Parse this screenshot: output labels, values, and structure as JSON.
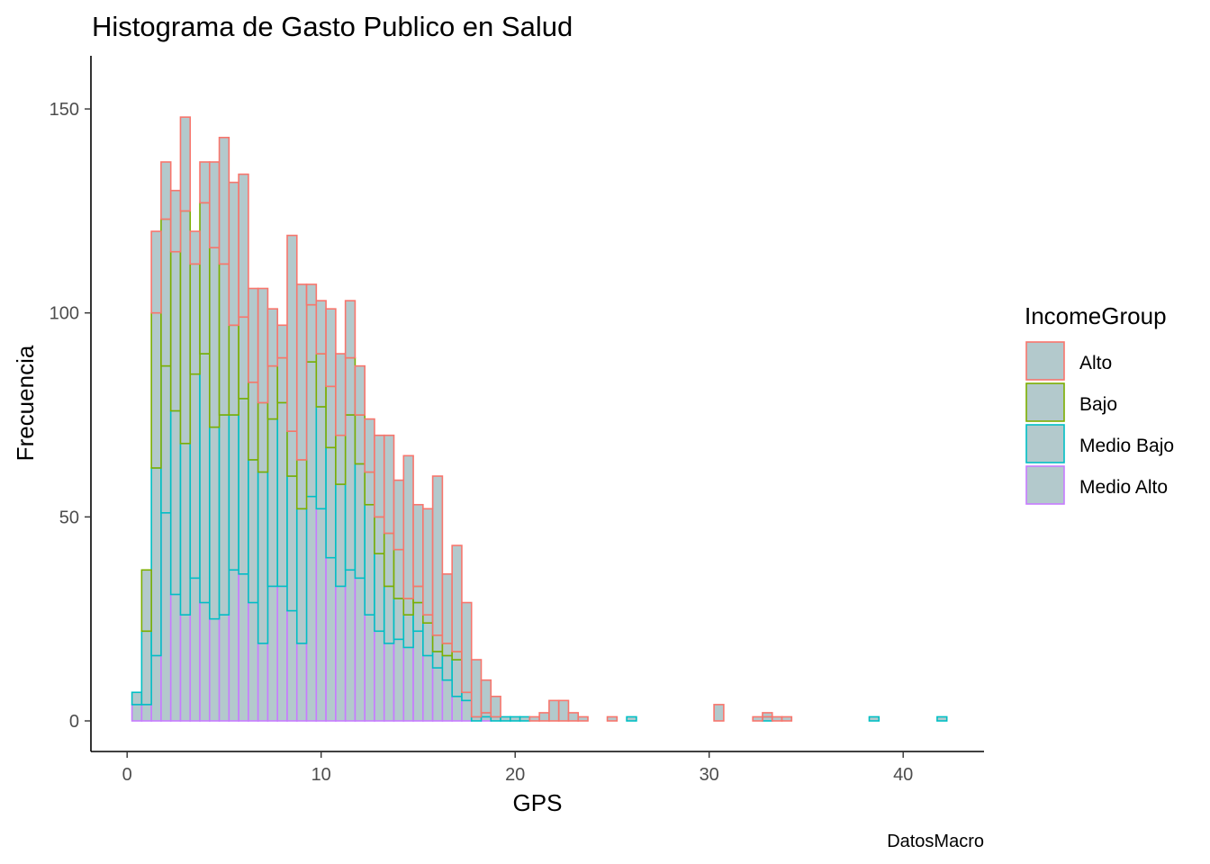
{
  "chart_data": {
    "type": "bar",
    "title": "Histograma de Gasto Publico en Salud",
    "xlabel": "GPS",
    "ylabel": "Frecuencia",
    "caption": "DatosMacro",
    "xlim": [
      0,
      43
    ],
    "ylim": [
      0,
      160
    ],
    "xticks": [
      0,
      10,
      20,
      30,
      40
    ],
    "yticks": [
      0,
      50,
      100,
      150
    ],
    "bin_width": 0.5,
    "stacked": true,
    "grid": false,
    "fill_color": "#b3c9cc",
    "legend": {
      "title": "IncomeGroup",
      "position": "right"
    },
    "x": [
      0.5,
      1.0,
      1.5,
      2.0,
      2.5,
      3.0,
      3.5,
      4.0,
      4.5,
      5.0,
      5.5,
      6.0,
      6.5,
      7.0,
      7.5,
      8.0,
      8.5,
      9.0,
      9.5,
      10.0,
      10.5,
      11.0,
      11.5,
      12.0,
      12.5,
      13.0,
      13.5,
      14.0,
      14.5,
      15.0,
      15.5,
      16.0,
      16.5,
      17.0,
      17.5,
      18.0,
      18.5,
      19.0,
      19.5,
      20.0,
      20.5,
      21.0,
      21.5,
      22.0,
      22.5,
      23.0,
      23.5,
      24.0,
      24.5,
      25.0,
      25.5,
      26.0,
      26.5,
      27.0,
      27.5,
      28.0,
      28.5,
      29.0,
      29.5,
      30.0,
      30.5,
      31.0,
      31.5,
      32.0,
      32.5,
      33.0,
      33.5,
      34.0,
      34.5,
      35.0,
      35.5,
      36.0,
      36.5,
      37.0,
      37.5,
      38.0,
      38.5,
      39.0,
      39.5,
      40.0,
      40.5,
      41.0,
      41.5,
      42.0
    ],
    "series": [
      {
        "name": "Medio Alto",
        "color": "#c77cff",
        "values": [
          4,
          4,
          16,
          51,
          31,
          26,
          35,
          29,
          25,
          26,
          37,
          36,
          29,
          19,
          33,
          33,
          27,
          19,
          55,
          52,
          40,
          33,
          37,
          35,
          26,
          22,
          19,
          20,
          18,
          22,
          16,
          13,
          10,
          6,
          5,
          0,
          1,
          0,
          0,
          0,
          0,
          0,
          0,
          0,
          0,
          0,
          0,
          0,
          0,
          0,
          0,
          0,
          0,
          0,
          0,
          0,
          0,
          0,
          0,
          0,
          0,
          0,
          0,
          0,
          0,
          0,
          0,
          0,
          0,
          0,
          0,
          0,
          0,
          0,
          0,
          0,
          0,
          0,
          0,
          0,
          0,
          0,
          0,
          0
        ]
      },
      {
        "name": "Medio Bajo",
        "color": "#00bfc4",
        "values": [
          3,
          18,
          46,
          36,
          45,
          42,
          50,
          61,
          47,
          49,
          38,
          43,
          35,
          42,
          41,
          45,
          33,
          33,
          33,
          25,
          27,
          25,
          38,
          28,
          27,
          19,
          14,
          10,
          8,
          7,
          8,
          4,
          6,
          9,
          2,
          1,
          1,
          1,
          1,
          1,
          1,
          0,
          0,
          0,
          0,
          0,
          0,
          0,
          0,
          0,
          0,
          1,
          0,
          0,
          0,
          0,
          0,
          0,
          0,
          0,
          0,
          0,
          0,
          0,
          0,
          1,
          0,
          0,
          0,
          0,
          0,
          0,
          0,
          0,
          0,
          0,
          1,
          0,
          0,
          0,
          0,
          0,
          0,
          1
        ]
      },
      {
        "name": "Bajo",
        "color": "#7cae00",
        "values": [
          0,
          15,
          38,
          36,
          39,
          57,
          27,
          37,
          44,
          37,
          22,
          20,
          19,
          17,
          13,
          11,
          11,
          12,
          14,
          13,
          15,
          12,
          14,
          12,
          8,
          9,
          13,
          12,
          4,
          4,
          2,
          4,
          3,
          2,
          0,
          0,
          0,
          0,
          0,
          0,
          0,
          0,
          0,
          0,
          0,
          0,
          0,
          0,
          0,
          0,
          0,
          0,
          0,
          0,
          0,
          0,
          0,
          0,
          0,
          0,
          0,
          0,
          0,
          0,
          0,
          0,
          0,
          0,
          0,
          0,
          0,
          0,
          0,
          0,
          0,
          0,
          0,
          0,
          0,
          0,
          0,
          0,
          0,
          0
        ]
      },
      {
        "name": "Alto",
        "color": "#f8766d",
        "values": [
          0,
          0,
          20,
          14,
          15,
          23,
          8,
          10,
          21,
          31,
          35,
          35,
          23,
          28,
          14,
          8,
          48,
          43,
          5,
          13,
          19,
          20,
          14,
          12,
          13,
          20,
          24,
          17,
          35,
          20,
          26,
          39,
          17,
          26,
          22,
          14,
          8,
          5,
          0,
          0,
          0,
          1,
          2,
          5,
          5,
          2,
          1,
          0,
          0,
          1,
          0,
          0,
          0,
          0,
          0,
          0,
          0,
          0,
          0,
          0,
          4,
          0,
          0,
          0,
          1,
          1,
          1,
          1,
          0,
          0,
          0,
          0,
          0,
          0,
          0,
          0,
          0,
          0,
          0,
          0,
          0,
          0,
          0,
          0
        ]
      }
    ]
  }
}
